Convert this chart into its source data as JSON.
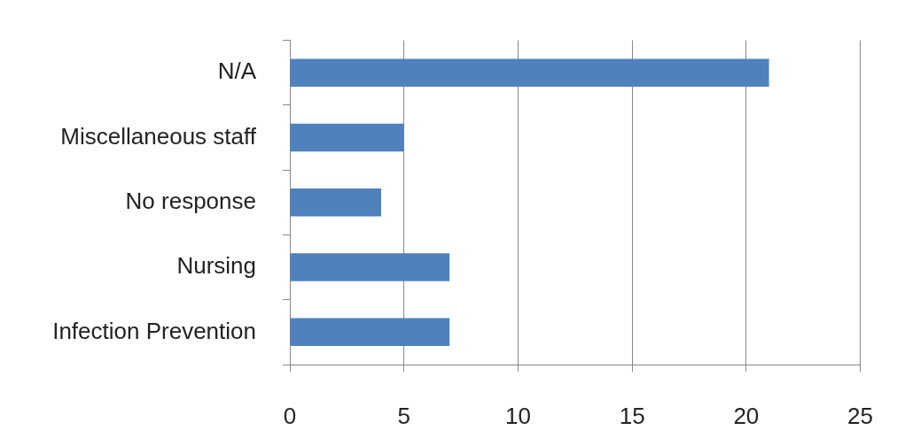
{
  "chart_data": {
    "type": "bar",
    "orientation": "horizontal",
    "categories": [
      "N/A",
      "Miscellaneous staff",
      "No response",
      "Nursing",
      "Infection Prevention"
    ],
    "values": [
      21,
      5,
      4,
      7,
      7
    ],
    "color": "#4f81bd",
    "xlim": [
      0,
      25
    ],
    "xticks": [
      0,
      5,
      10,
      15,
      20,
      25
    ],
    "grid": "x",
    "legend": false
  }
}
